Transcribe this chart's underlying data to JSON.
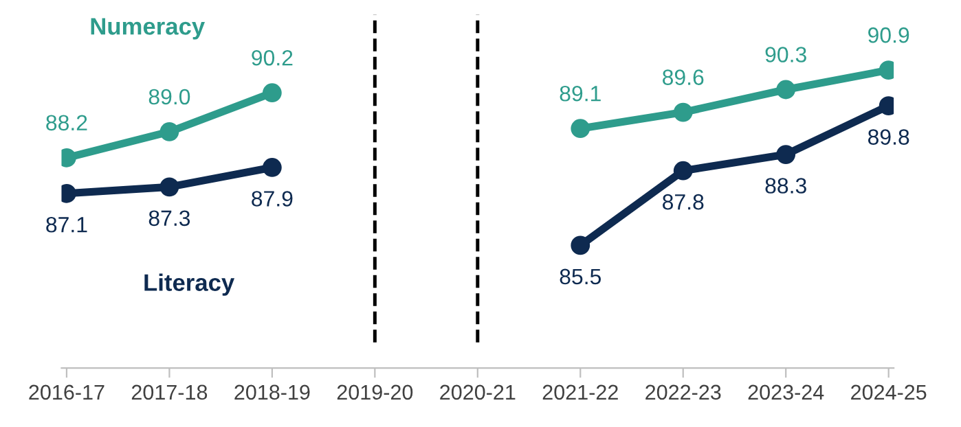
{
  "chart_data": {
    "type": "line",
    "categories": [
      "2016-17",
      "2017-18",
      "2018-19",
      "2019-20",
      "2020-21",
      "2021-22",
      "2022-23",
      "2023-24",
      "2024-25"
    ],
    "series": [
      {
        "name": "Numeracy",
        "color": "#2e9c8c",
        "values": [
          88.2,
          89.0,
          90.2,
          null,
          null,
          89.1,
          89.6,
          90.3,
          90.9
        ],
        "value_labels": [
          "88.2",
          "89.0",
          "90.2",
          null,
          null,
          "89.1",
          "89.6",
          "90.3",
          "90.9"
        ]
      },
      {
        "name": "Literacy",
        "color": "#0e2a50",
        "values": [
          87.1,
          87.3,
          87.9,
          null,
          null,
          85.5,
          87.8,
          88.3,
          89.8
        ],
        "value_labels": [
          "87.1",
          "87.3",
          "87.9",
          null,
          null,
          "85.5",
          "87.8",
          "88.3",
          "89.8"
        ]
      }
    ],
    "tick_labels": "x",
    "marker": "circle",
    "line_style": "solid",
    "grid": false,
    "legend": false,
    "ref_lines": [
      {
        "axis": "x",
        "value": "2019-20",
        "color": "#000000",
        "line_style": "dashed"
      },
      {
        "axis": "x",
        "value": "2020-21",
        "color": "#000000",
        "line_style": "dashed"
      }
    ]
  }
}
